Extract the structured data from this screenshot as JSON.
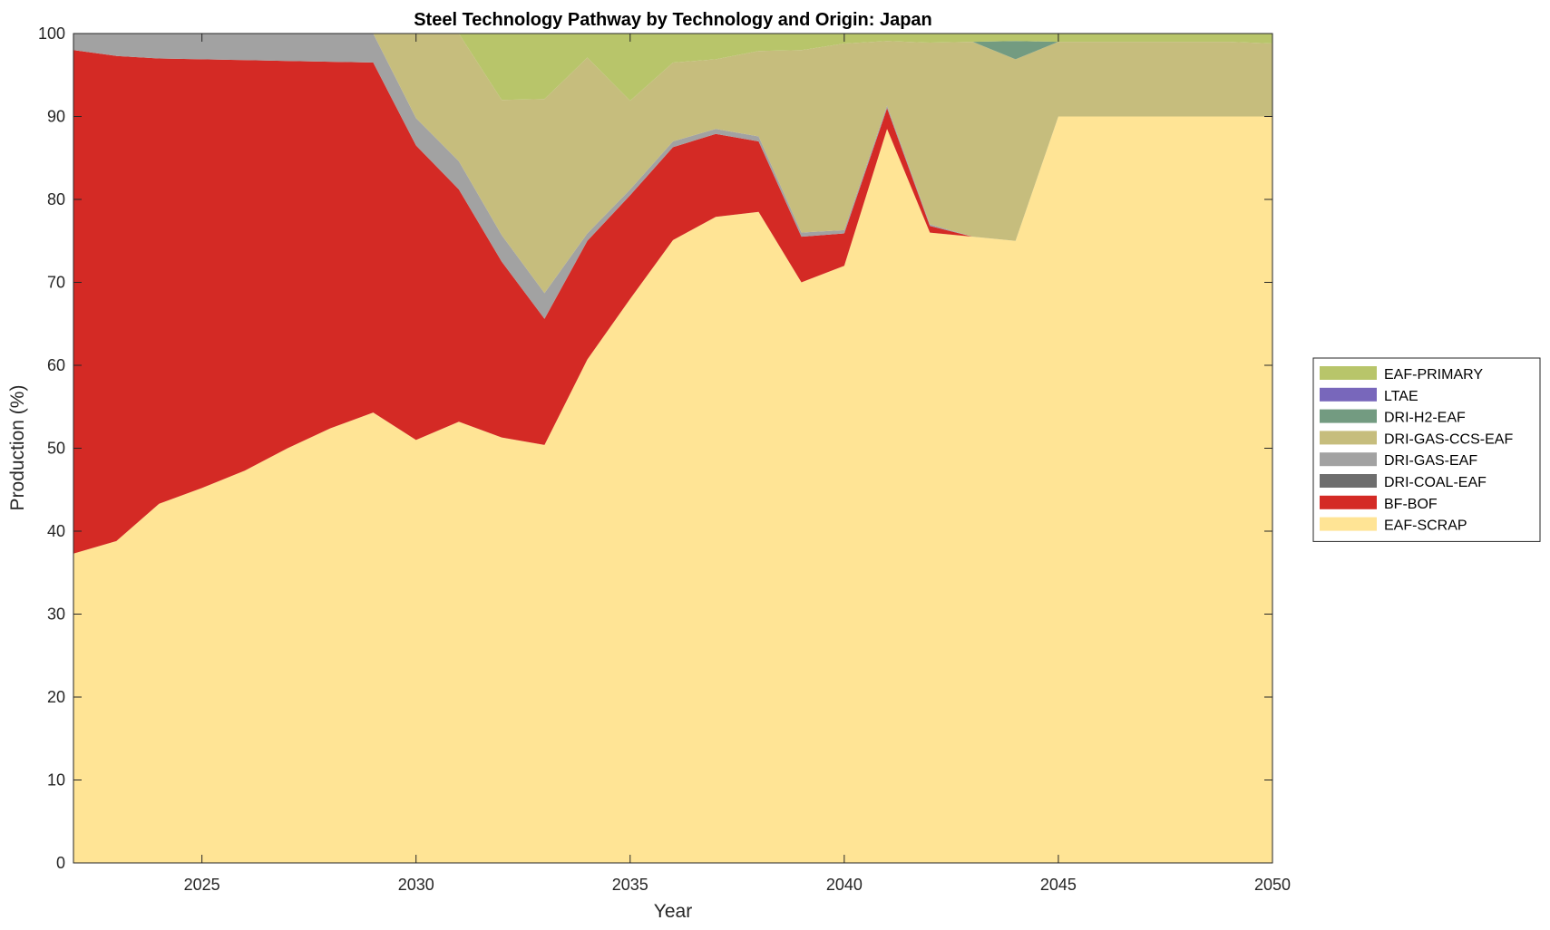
{
  "chart_data": {
    "type": "area",
    "stacked": true,
    "title": "Steel Technology Pathway by Technology and Origin: Japan",
    "xlabel": "Year",
    "ylabel": "Production (%)",
    "xlim": [
      2022,
      2050
    ],
    "ylim": [
      0,
      100
    ],
    "xticks": [
      2025,
      2030,
      2035,
      2040,
      2045,
      2050
    ],
    "yticks": [
      0,
      10,
      20,
      30,
      40,
      50,
      60,
      70,
      80,
      90,
      100
    ],
    "grid": false,
    "legend_position": "right",
    "x": [
      2022,
      2023,
      2024,
      2025,
      2026,
      2027,
      2028,
      2029,
      2030,
      2031,
      2032,
      2033,
      2034,
      2035,
      2036,
      2037,
      2038,
      2039,
      2040,
      2041,
      2042,
      2043,
      2044,
      2045,
      2046,
      2047,
      2048,
      2049,
      2050
    ],
    "series": [
      {
        "name": "EAF-SCRAP",
        "color": "#ffe495",
        "values": [
          37.3,
          38.8,
          43.3,
          45.2,
          47.3,
          50.0,
          52.4,
          54.3,
          51.0,
          53.2,
          51.3,
          50.4,
          60.7,
          68.0,
          75.1,
          77.9,
          78.5,
          70.0,
          72.0,
          88.5,
          76.0,
          75.5,
          75.0,
          90.0,
          90.0,
          90.0,
          90.0,
          90.0,
          90.0
        ]
      },
      {
        "name": "BF-BOF",
        "color": "#d42a25",
        "values": [
          60.7,
          58.5,
          53.7,
          51.7,
          49.5,
          46.7,
          44.2,
          42.2,
          35.5,
          28.0,
          21.2,
          15.2,
          14.3,
          12.5,
          11.2,
          10.0,
          8.5,
          5.5,
          3.9,
          2.5,
          0.8,
          0,
          0,
          0,
          0,
          0,
          0,
          0,
          0
        ]
      },
      {
        "name": "DRI-COAL-EAF",
        "color": "#6e6e6e",
        "values": [
          0,
          0,
          0,
          0,
          0,
          0,
          0,
          0,
          0,
          0,
          0,
          0,
          0,
          0,
          0,
          0,
          0,
          0,
          0,
          0,
          0,
          0,
          0,
          0,
          0,
          0,
          0,
          0,
          0
        ]
      },
      {
        "name": "DRI-GAS-EAF",
        "color": "#a2a2a2",
        "values": [
          2.0,
          2.7,
          3.0,
          3.1,
          3.2,
          3.3,
          3.4,
          3.5,
          3.3,
          3.4,
          3.2,
          3.1,
          0.9,
          0.7,
          0.7,
          0.6,
          0.6,
          0.5,
          0.4,
          0.3,
          0.2,
          0,
          0,
          0,
          0,
          0,
          0,
          0,
          0
        ]
      },
      {
        "name": "DRI-GAS-CCS-EAF",
        "color": "#c6bd7d",
        "values": [
          0,
          0,
          0,
          0,
          0,
          0,
          0,
          0,
          10.2,
          15.4,
          16.3,
          23.4,
          21.2,
          10.7,
          9.5,
          8.4,
          10.3,
          22.0,
          22.5,
          7.8,
          21.9,
          23.5,
          21.9,
          9.0,
          9.0,
          9.0,
          9.0,
          9.0,
          8.8
        ]
      },
      {
        "name": "DRI-H2-EAF",
        "color": "#739b81",
        "values": [
          0,
          0,
          0,
          0,
          0,
          0,
          0,
          0,
          0,
          0,
          0,
          0,
          0,
          0,
          0,
          0,
          0,
          0,
          0,
          0,
          0,
          0,
          2.2,
          0,
          0,
          0,
          0,
          0,
          0
        ]
      },
      {
        "name": "LTAE",
        "color": "#7867bb",
        "values": [
          0,
          0,
          0,
          0,
          0,
          0,
          0,
          0,
          0,
          0,
          0,
          0,
          0,
          0,
          0,
          0,
          0,
          0,
          0,
          0,
          0,
          0,
          0,
          0,
          0,
          0,
          0,
          0,
          0
        ]
      },
      {
        "name": "EAF-PRIMARY",
        "color": "#b8c56a",
        "values": [
          0,
          0,
          0,
          0,
          0,
          0,
          0,
          0,
          0,
          0,
          8.0,
          7.9,
          2.9,
          8.1,
          3.5,
          3.1,
          2.1,
          2.0,
          1.2,
          0.9,
          1.1,
          1.0,
          0.9,
          1.0,
          1.0,
          1.0,
          1.0,
          1.0,
          1.2
        ]
      }
    ],
    "legend_order": [
      "EAF-PRIMARY",
      "LTAE",
      "DRI-H2-EAF",
      "DRI-GAS-CCS-EAF",
      "DRI-GAS-EAF",
      "DRI-COAL-EAF",
      "BF-BOF",
      "EAF-SCRAP"
    ]
  }
}
